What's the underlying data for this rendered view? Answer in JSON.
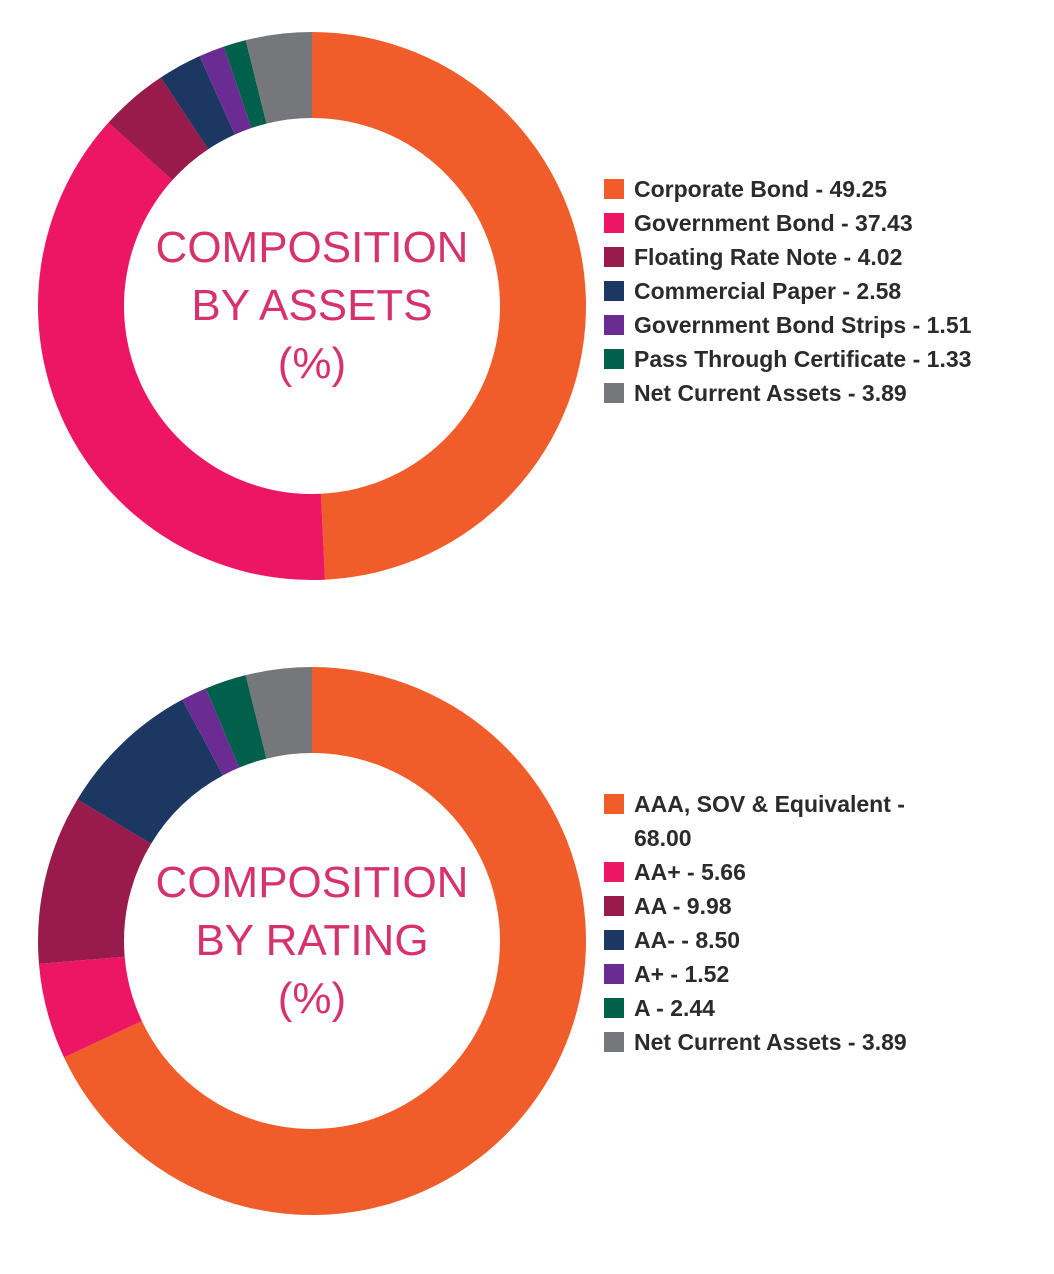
{
  "chart_data": [
    {
      "type": "pie",
      "title": "COMPOSITION BY ASSETS (%)",
      "center_lines": [
        "COMPOSITION",
        "BY ASSETS",
        "(%)"
      ],
      "slices": [
        {
          "label": "Corporate Bond - 49.25",
          "value": 49.25,
          "color": "#f05d2a"
        },
        {
          "label": "Government Bond - 37.43",
          "value": 37.43,
          "color": "#ec1664"
        },
        {
          "label": "Floating Rate Note - 4.02",
          "value": 4.02,
          "color": "#991b4b"
        },
        {
          "label": "Commercial Paper - 2.58",
          "value": 2.58,
          "color": "#1c3761"
        },
        {
          "label": "Government Bond Strips - 1.51",
          "value": 1.51,
          "color": "#6a2c93"
        },
        {
          "label": "Pass Through Certificate - 1.33",
          "value": 1.33,
          "color": "#00604b"
        },
        {
          "label": "Net Current Assets - 3.89",
          "value": 3.89,
          "color": "#76777a"
        }
      ]
    },
    {
      "type": "pie",
      "title": "COMPOSITION BY RATING (%)",
      "center_lines": [
        "COMPOSITION",
        "BY RATING",
        "(%)"
      ],
      "slices": [
        {
          "label": "AAA, SOV & Equivalent - 68.00",
          "value": 68.0,
          "color": "#f05d2a"
        },
        {
          "label": "AA+ - 5.66",
          "value": 5.66,
          "color": "#ec1664"
        },
        {
          "label": "AA - 9.98",
          "value": 9.98,
          "color": "#991b4b"
        },
        {
          "label": "AA- - 8.50",
          "value": 8.5,
          "color": "#1c3761"
        },
        {
          "label": "A+ - 1.52",
          "value": 1.52,
          "color": "#6a2c93"
        },
        {
          "label": "A - 2.44",
          "value": 2.44,
          "color": "#00604b"
        },
        {
          "label": "Net Current Assets - 3.89",
          "value": 3.89,
          "color": "#76777a"
        }
      ]
    }
  ]
}
